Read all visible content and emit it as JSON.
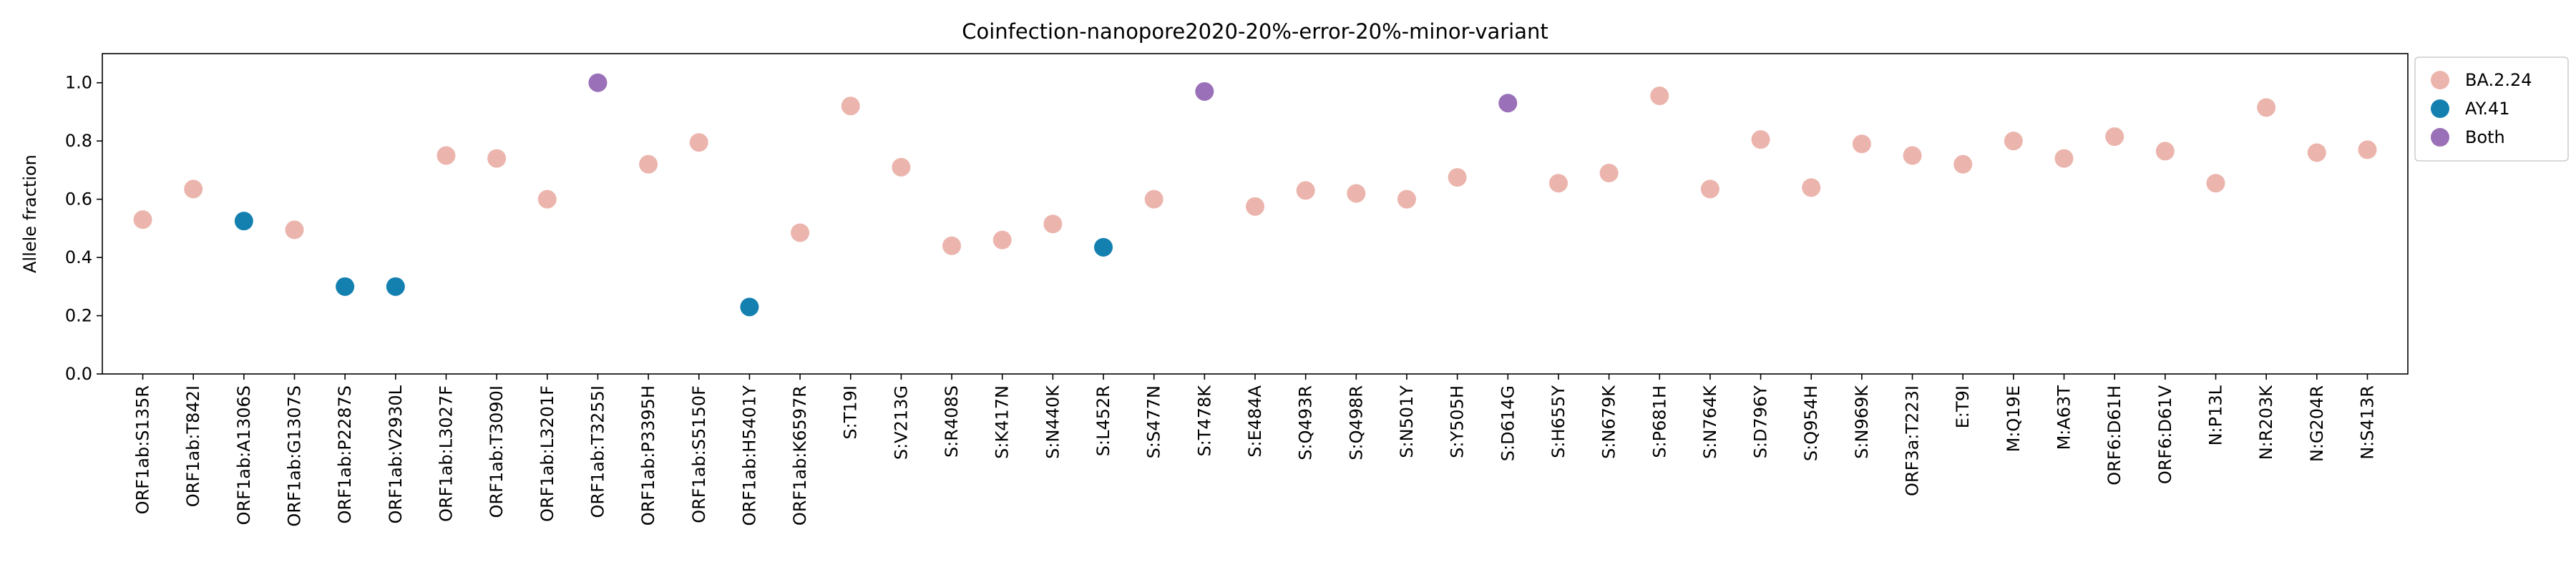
{
  "chart_data": {
    "type": "scatter",
    "title": "Coinfection-nanopore2020-20%-error-20%-minor-variant",
    "xlabel": "",
    "ylabel": "Allele fraction",
    "ylim": [
      0.0,
      1.1
    ],
    "yticks": [
      "0.0",
      "0.2",
      "0.4",
      "0.6",
      "0.8",
      "1.0"
    ],
    "grid": false,
    "legend_position": "outside-right",
    "colors": {
      "BA.2.24": "#ebb5ad",
      "AY.41": "#1380b0",
      "Both": "#9a70b8"
    },
    "legend": [
      "BA.2.24",
      "AY.41",
      "Both"
    ],
    "categories": [
      "ORF1ab:S135R",
      "ORF1ab:T842I",
      "ORF1ab:A1306S",
      "ORF1ab:G1307S",
      "ORF1ab:P2287S",
      "ORF1ab:V2930L",
      "ORF1ab:L3027F",
      "ORF1ab:T3090I",
      "ORF1ab:L3201F",
      "ORF1ab:T3255I",
      "ORF1ab:P3395H",
      "ORF1ab:S5150F",
      "ORF1ab:H5401Y",
      "ORF1ab:K6597R",
      "S:T19I",
      "S:V213G",
      "S:R408S",
      "S:K417N",
      "S:N440K",
      "S:L452R",
      "S:S477N",
      "S:T478K",
      "S:E484A",
      "S:Q493R",
      "S:Q498R",
      "S:N501Y",
      "S:Y505H",
      "S:D614G",
      "S:H655Y",
      "S:N679K",
      "S:P681H",
      "S:N764K",
      "S:D796Y",
      "S:Q954H",
      "S:N969K",
      "ORF3a:T223I",
      "E:T9I",
      "M:Q19E",
      "M:A63T",
      "ORF6:D61H",
      "ORF6:D61V",
      "N:P13L",
      "N:R203K",
      "N:G204R",
      "N:S413R"
    ],
    "values": [
      0.53,
      0.635,
      0.525,
      0.495,
      0.3,
      0.3,
      0.75,
      0.74,
      0.6,
      1.0,
      0.72,
      0.795,
      0.23,
      0.485,
      0.92,
      0.71,
      0.44,
      0.46,
      0.515,
      0.435,
      0.6,
      0.97,
      0.575,
      0.63,
      0.62,
      0.6,
      0.675,
      0.93,
      0.655,
      0.69,
      0.955,
      0.635,
      0.805,
      0.64,
      0.79,
      0.75,
      0.72,
      0.8,
      0.74,
      0.815,
      0.765,
      0.655,
      0.915,
      0.76,
      0.77
    ],
    "groups": [
      "BA.2.24",
      "BA.2.24",
      "AY.41",
      "BA.2.24",
      "AY.41",
      "AY.41",
      "BA.2.24",
      "BA.2.24",
      "BA.2.24",
      "Both",
      "BA.2.24",
      "BA.2.24",
      "AY.41",
      "BA.2.24",
      "BA.2.24",
      "BA.2.24",
      "BA.2.24",
      "BA.2.24",
      "BA.2.24",
      "AY.41",
      "BA.2.24",
      "Both",
      "BA.2.24",
      "BA.2.24",
      "BA.2.24",
      "BA.2.24",
      "BA.2.24",
      "Both",
      "BA.2.24",
      "BA.2.24",
      "BA.2.24",
      "BA.2.24",
      "BA.2.24",
      "BA.2.24",
      "BA.2.24",
      "BA.2.24",
      "BA.2.24",
      "BA.2.24",
      "BA.2.24",
      "BA.2.24",
      "BA.2.24",
      "BA.2.24",
      "BA.2.24",
      "BA.2.24",
      "BA.2.24"
    ]
  }
}
